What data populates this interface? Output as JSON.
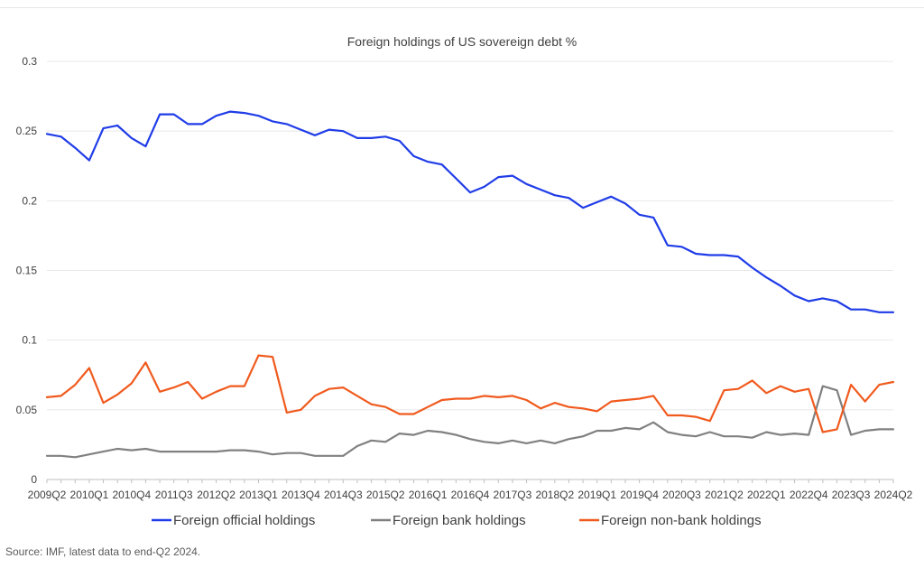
{
  "chart_data": {
    "type": "line",
    "title": "Foreign holdings of US sovereign debt %",
    "xlabel": "",
    "ylabel": "",
    "ylim": [
      0,
      0.3
    ],
    "yticks": [
      "0",
      "0.05",
      "0.1",
      "0.15",
      "0.2",
      "0.25",
      "0.3"
    ],
    "grid": true,
    "legend_position": "bottom",
    "xtick_labels": [
      "2009Q2",
      "2010Q1",
      "2010Q4",
      "2011Q3",
      "2012Q2",
      "2013Q1",
      "2013Q4",
      "2014Q3",
      "2015Q2",
      "2016Q1",
      "2016Q4",
      "2017Q3",
      "2018Q2",
      "2019Q1",
      "2019Q4",
      "2020Q3",
      "2021Q2",
      "2022Q1",
      "2022Q4",
      "2023Q3",
      "2024Q2"
    ],
    "x": [
      "2009Q2",
      "2009Q3",
      "2009Q4",
      "2010Q1",
      "2010Q2",
      "2010Q3",
      "2010Q4",
      "2011Q1",
      "2011Q2",
      "2011Q3",
      "2011Q4",
      "2012Q1",
      "2012Q2",
      "2012Q3",
      "2012Q4",
      "2013Q1",
      "2013Q2",
      "2013Q3",
      "2013Q4",
      "2014Q1",
      "2014Q2",
      "2014Q3",
      "2014Q4",
      "2015Q1",
      "2015Q2",
      "2015Q3",
      "2015Q4",
      "2016Q1",
      "2016Q2",
      "2016Q3",
      "2016Q4",
      "2017Q1",
      "2017Q2",
      "2017Q3",
      "2017Q4",
      "2018Q1",
      "2018Q2",
      "2018Q3",
      "2018Q4",
      "2019Q1",
      "2019Q2",
      "2019Q3",
      "2019Q4",
      "2020Q1",
      "2020Q2",
      "2020Q3",
      "2020Q4",
      "2021Q1",
      "2021Q2",
      "2021Q3",
      "2021Q4",
      "2022Q1",
      "2022Q2",
      "2022Q3",
      "2022Q4",
      "2023Q1",
      "2023Q2",
      "2023Q3",
      "2023Q4",
      "2024Q1",
      "2024Q2"
    ],
    "series": [
      {
        "name": "Foreign official holdings",
        "color": "#1f3ce8",
        "values": [
          0.248,
          0.246,
          0.238,
          0.229,
          0.252,
          0.254,
          0.245,
          0.239,
          0.262,
          0.262,
          0.255,
          0.255,
          0.261,
          0.264,
          0.263,
          0.261,
          0.257,
          0.255,
          0.251,
          0.247,
          0.251,
          0.25,
          0.245,
          0.245,
          0.246,
          0.243,
          0.232,
          0.228,
          0.226,
          0.216,
          0.206,
          0.21,
          0.217,
          0.218,
          0.212,
          0.208,
          0.204,
          0.202,
          0.195,
          0.199,
          0.203,
          0.198,
          0.19,
          0.188,
          0.168,
          0.167,
          0.162,
          0.161,
          0.161,
          0.16,
          0.152,
          0.145,
          0.139,
          0.132,
          0.128,
          0.13,
          0.128,
          0.122,
          0.122,
          0.12,
          0.12
        ]
      },
      {
        "name": "Foreign bank holdings",
        "color": "#808080",
        "values": [
          0.017,
          0.017,
          0.016,
          0.018,
          0.02,
          0.022,
          0.021,
          0.022,
          0.02,
          0.02,
          0.02,
          0.02,
          0.02,
          0.021,
          0.021,
          0.02,
          0.018,
          0.019,
          0.019,
          0.017,
          0.017,
          0.017,
          0.024,
          0.028,
          0.027,
          0.033,
          0.032,
          0.035,
          0.034,
          0.032,
          0.029,
          0.027,
          0.026,
          0.028,
          0.026,
          0.028,
          0.026,
          0.029,
          0.031,
          0.035,
          0.035,
          0.037,
          0.036,
          0.041,
          0.034,
          0.032,
          0.031,
          0.034,
          0.031,
          0.031,
          0.03,
          0.034,
          0.032,
          0.033,
          0.032,
          0.067,
          0.064,
          0.032,
          0.035,
          0.036,
          0.036
        ]
      },
      {
        "name": "Foreign non-bank holdings",
        "color": "#f05a1e",
        "values": [
          0.059,
          0.06,
          0.068,
          0.08,
          0.055,
          0.061,
          0.069,
          0.084,
          0.063,
          0.066,
          0.07,
          0.058,
          0.063,
          0.067,
          0.067,
          0.089,
          0.088,
          0.048,
          0.05,
          0.06,
          0.065,
          0.066,
          0.06,
          0.054,
          0.052,
          0.047,
          0.047,
          0.052,
          0.057,
          0.058,
          0.058,
          0.06,
          0.059,
          0.06,
          0.057,
          0.051,
          0.055,
          0.052,
          0.051,
          0.049,
          0.056,
          0.057,
          0.058,
          0.06,
          0.046,
          0.046,
          0.045,
          0.042,
          0.064,
          0.065,
          0.071,
          0.062,
          0.067,
          0.063,
          0.065,
          0.034,
          0.036,
          0.068,
          0.056,
          0.068,
          0.07
        ]
      }
    ]
  },
  "source": "Source: IMF, latest data to end-Q2 2024."
}
